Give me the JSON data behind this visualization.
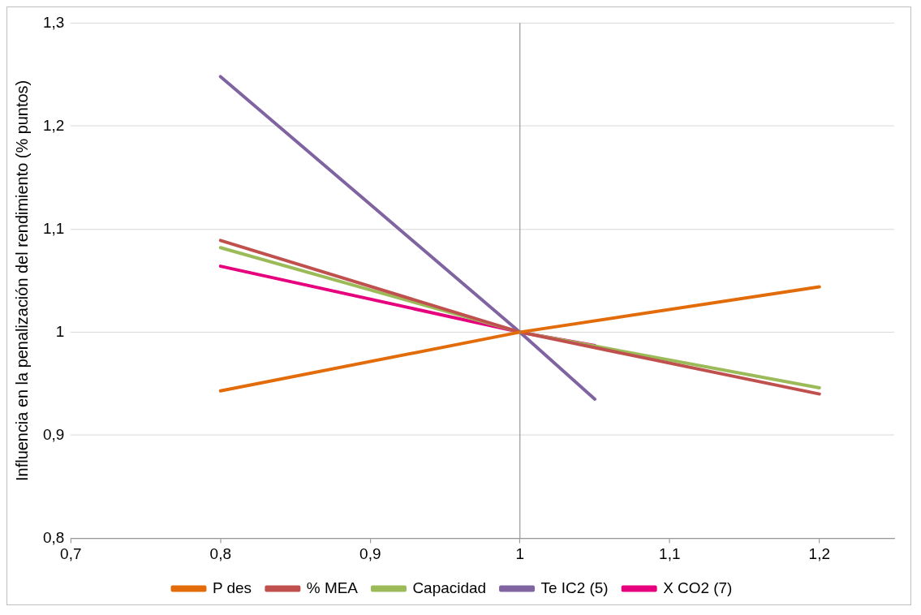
{
  "chart_data": {
    "type": "line",
    "ylabel": "Influencia en la penalización del rendimiento (% puntos)",
    "series": [
      {
        "name": "P des",
        "color": "#e36c0a",
        "x": [
          0.8,
          1,
          1.2
        ],
        "values": [
          0.943,
          1,
          1.044
        ]
      },
      {
        "name": "% MEA",
        "color": "#c0504d",
        "x": [
          0.8,
          1,
          1.2
        ],
        "values": [
          1.089,
          1,
          0.94
        ]
      },
      {
        "name": "Capacidad",
        "color": "#9bbb59",
        "x": [
          0.8,
          1,
          1.2
        ],
        "values": [
          1.082,
          1,
          0.946
        ]
      },
      {
        "name": "Te IC2 (5)",
        "color": "#8064a2",
        "x": [
          0.8,
          1,
          1.05
        ],
        "values": [
          1.248,
          1,
          0.935
        ]
      },
      {
        "name": "X CO2 (7)",
        "color": "#e6007e",
        "x": [
          0.8,
          1,
          1.05
        ],
        "values": [
          1.064,
          1,
          0.987
        ]
      }
    ],
    "xlim": [
      0.7,
      1.25
    ],
    "xticks": [
      {
        "value": 0.7,
        "label": "0,7"
      },
      {
        "value": 0.8,
        "label": "0,8"
      },
      {
        "value": 0.9,
        "label": "0,9"
      },
      1,
      {
        "value": 1.1,
        "label": "1,1"
      },
      {
        "value": 1.2,
        "label": "1,2"
      }
    ],
    "ylim": [
      0.8,
      1.3
    ],
    "yticks": [
      {
        "value": 0.8,
        "label": "0,8"
      },
      {
        "value": 0.9,
        "label": "0,9"
      },
      1,
      {
        "value": 1.1,
        "label": "1,1"
      },
      {
        "value": 1.2,
        "label": "1,2"
      },
      {
        "value": 1.3,
        "label": "1,3"
      }
    ],
    "ref_lines": [
      {
        "axis": "x",
        "value": 1,
        "color": "#868686"
      }
    ],
    "grid": "y",
    "legend": "bottom",
    "marker": "none",
    "line_style": "solid"
  }
}
